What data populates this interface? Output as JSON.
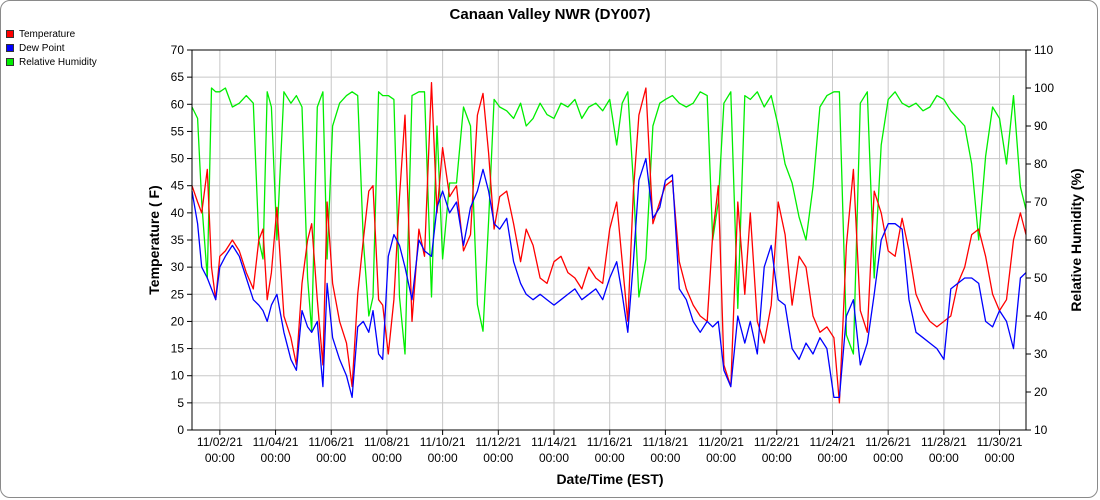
{
  "chart_data": {
    "type": "line",
    "title": "Canaan Valley NWR (DY007)",
    "xlabel": "Date/Time (EST)",
    "ylabel_left": "Temperature ( F)",
    "ylabel_right": "Relative Humidity (%)",
    "ylim_left": [
      0,
      70
    ],
    "ylim_right": [
      10,
      110
    ],
    "yticks_left": [
      0,
      5,
      10,
      15,
      20,
      25,
      30,
      35,
      40,
      45,
      50,
      55,
      60,
      65,
      70
    ],
    "yticks_right": [
      10,
      20,
      30,
      40,
      50,
      60,
      70,
      80,
      90,
      100,
      110
    ],
    "x_unit": "days since 11/01/21 00:00",
    "xlim": [
      1.0,
      30.95
    ],
    "xticks": [
      {
        "x": 2,
        "date": "11/02/21",
        "time": "00:00"
      },
      {
        "x": 4,
        "date": "11/04/21",
        "time": "00:00"
      },
      {
        "x": 6,
        "date": "11/06/21",
        "time": "00:00"
      },
      {
        "x": 8,
        "date": "11/08/21",
        "time": "00:00"
      },
      {
        "x": 10,
        "date": "11/10/21",
        "time": "00:00"
      },
      {
        "x": 12,
        "date": "11/12/21",
        "time": "00:00"
      },
      {
        "x": 14,
        "date": "11/14/21",
        "time": "00:00"
      },
      {
        "x": 16,
        "date": "11/16/21",
        "time": "00:00"
      },
      {
        "x": 18,
        "date": "11/18/21",
        "time": "00:00"
      },
      {
        "x": 20,
        "date": "11/20/21",
        "time": "00:00"
      },
      {
        "x": 22,
        "date": "11/22/21",
        "time": "00:00"
      },
      {
        "x": 24,
        "date": "11/24/21",
        "time": "00:00"
      },
      {
        "x": 26,
        "date": "11/26/21",
        "time": "00:00"
      },
      {
        "x": 28,
        "date": "11/28/21",
        "time": "00:00"
      },
      {
        "x": 30,
        "date": "11/30/21",
        "time": "00:00"
      }
    ],
    "grid": true,
    "legend_position": "top-left outside",
    "series": [
      {
        "name": "Temperature",
        "axis": "left",
        "color": "#ff0000",
        "x": [
          1.0,
          1.2,
          1.35,
          1.55,
          1.7,
          1.85,
          2.0,
          2.2,
          2.45,
          2.7,
          2.95,
          3.2,
          3.4,
          3.55,
          3.7,
          3.85,
          4.05,
          4.3,
          4.55,
          4.75,
          4.95,
          5.15,
          5.3,
          5.5,
          5.7,
          5.85,
          6.05,
          6.3,
          6.55,
          6.75,
          6.95,
          7.15,
          7.35,
          7.5,
          7.7,
          7.85,
          8.05,
          8.25,
          8.45,
          8.65,
          8.9,
          9.15,
          9.35,
          9.6,
          9.8,
          10.0,
          10.25,
          10.5,
          10.75,
          11.0,
          11.25,
          11.45,
          11.65,
          11.85,
          12.05,
          12.3,
          12.55,
          12.8,
          13.0,
          13.25,
          13.5,
          13.75,
          14.0,
          14.25,
          14.5,
          14.75,
          15.0,
          15.25,
          15.5,
          15.75,
          16.0,
          16.25,
          16.45,
          16.65,
          16.85,
          17.05,
          17.3,
          17.55,
          17.8,
          18.0,
          18.25,
          18.5,
          18.75,
          19.0,
          19.25,
          19.5,
          19.7,
          19.9,
          20.1,
          20.35,
          20.6,
          20.85,
          21.05,
          21.3,
          21.55,
          21.8,
          22.05,
          22.3,
          22.55,
          22.8,
          23.05,
          23.3,
          23.55,
          23.8,
          24.05,
          24.25,
          24.5,
          24.75,
          25.0,
          25.25,
          25.5,
          25.75,
          26.0,
          26.25,
          26.5,
          26.75,
          27.0,
          27.25,
          27.5,
          27.75,
          28.0,
          28.25,
          28.5,
          28.75,
          29.0,
          29.25,
          29.5,
          29.75,
          30.0,
          30.25,
          30.5,
          30.75,
          30.95
        ],
        "values": [
          45,
          42,
          40,
          48,
          30,
          24,
          32,
          33,
          35,
          33,
          29,
          26,
          35,
          37,
          24,
          29,
          41,
          21,
          17,
          12,
          27,
          35,
          38,
          24,
          12,
          42,
          27,
          20,
          16,
          8,
          25,
          35,
          44,
          45,
          24,
          23,
          14,
          24,
          43,
          58,
          20,
          37,
          32,
          64,
          40,
          52,
          43,
          45,
          33,
          36,
          58,
          62,
          51,
          37,
          43,
          44,
          38,
          31,
          37,
          34,
          28,
          27,
          31,
          32,
          29,
          28,
          26,
          30,
          28,
          27,
          37,
          42,
          31,
          20,
          44,
          58,
          63,
          38,
          42,
          45,
          46,
          31,
          26,
          23,
          21,
          20,
          36,
          45,
          12,
          8,
          42,
          25,
          40,
          20,
          16,
          23,
          42,
          36,
          23,
          32,
          30,
          21,
          18,
          19,
          17,
          5,
          34,
          48,
          22,
          18,
          44,
          40,
          33,
          32,
          39,
          33,
          25,
          22,
          20,
          19,
          20,
          21,
          27,
          30,
          36,
          37,
          32,
          25,
          22,
          24,
          35,
          40,
          36
        ]
      },
      {
        "name": "Dew Point",
        "axis": "left",
        "color": "#0000ff",
        "x": [
          1.0,
          1.2,
          1.35,
          1.55,
          1.7,
          1.85,
          2.0,
          2.2,
          2.45,
          2.7,
          2.95,
          3.2,
          3.4,
          3.55,
          3.7,
          3.85,
          4.05,
          4.3,
          4.55,
          4.75,
          4.95,
          5.15,
          5.3,
          5.5,
          5.7,
          5.85,
          6.05,
          6.3,
          6.55,
          6.75,
          6.95,
          7.15,
          7.35,
          7.5,
          7.7,
          7.85,
          8.05,
          8.25,
          8.45,
          8.65,
          8.9,
          9.15,
          9.35,
          9.6,
          9.8,
          10.0,
          10.25,
          10.5,
          10.75,
          11.0,
          11.25,
          11.45,
          11.65,
          11.85,
          12.05,
          12.3,
          12.55,
          12.8,
          13.0,
          13.25,
          13.5,
          13.75,
          14.0,
          14.25,
          14.5,
          14.75,
          15.0,
          15.25,
          15.5,
          15.75,
          16.0,
          16.25,
          16.45,
          16.65,
          16.85,
          17.05,
          17.3,
          17.55,
          17.8,
          18.0,
          18.25,
          18.5,
          18.75,
          19.0,
          19.25,
          19.5,
          19.7,
          19.9,
          20.1,
          20.35,
          20.6,
          20.85,
          21.05,
          21.3,
          21.55,
          21.8,
          22.05,
          22.3,
          22.55,
          22.8,
          23.05,
          23.3,
          23.55,
          23.8,
          24.05,
          24.25,
          24.5,
          24.75,
          25.0,
          25.25,
          25.5,
          25.75,
          26.0,
          26.25,
          26.5,
          26.75,
          27.0,
          27.25,
          27.5,
          27.75,
          28.0,
          28.25,
          28.5,
          28.75,
          29.0,
          29.25,
          29.5,
          29.75,
          30.0,
          30.25,
          30.5,
          30.75,
          30.95
        ],
        "values": [
          44,
          38,
          30,
          28,
          26,
          24,
          30,
          32,
          34,
          32,
          28,
          24,
          23,
          22,
          20,
          23,
          25,
          18,
          13,
          11,
          22,
          19,
          18,
          20,
          8,
          27,
          17,
          13,
          10,
          6,
          19,
          20,
          18,
          22,
          14,
          13,
          32,
          36,
          34,
          30,
          24,
          35,
          33,
          32,
          41,
          44,
          40,
          42,
          34,
          41,
          44,
          48,
          44,
          38,
          37,
          39,
          31,
          27,
          25,
          24,
          25,
          24,
          23,
          24,
          25,
          26,
          24,
          25,
          26,
          24,
          28,
          31,
          25,
          18,
          31,
          46,
          50,
          39,
          41,
          46,
          47,
          26,
          24,
          20,
          18,
          20,
          19,
          20,
          11,
          8,
          21,
          16,
          20,
          14,
          30,
          34,
          24,
          23,
          15,
          13,
          16,
          14,
          17,
          15,
          6,
          6,
          21,
          24,
          12,
          16,
          25,
          35,
          38,
          38,
          37,
          24,
          18,
          17,
          16,
          15,
          13,
          26,
          27,
          28,
          28,
          27,
          20,
          19,
          22,
          20,
          15,
          28,
          29
        ]
      },
      {
        "name": "Relative Humidity",
        "axis": "right",
        "color": "#00ee00",
        "x": [
          1.0,
          1.2,
          1.35,
          1.55,
          1.7,
          1.85,
          2.0,
          2.2,
          2.45,
          2.7,
          2.95,
          3.2,
          3.4,
          3.55,
          3.7,
          3.85,
          4.05,
          4.3,
          4.55,
          4.75,
          4.95,
          5.15,
          5.3,
          5.5,
          5.7,
          5.85,
          6.05,
          6.3,
          6.55,
          6.75,
          6.95,
          7.15,
          7.35,
          7.5,
          7.7,
          7.85,
          8.05,
          8.25,
          8.45,
          8.65,
          8.9,
          9.15,
          9.35,
          9.6,
          9.8,
          10.0,
          10.25,
          10.5,
          10.75,
          11.0,
          11.25,
          11.45,
          11.65,
          11.85,
          12.05,
          12.3,
          12.55,
          12.8,
          13.0,
          13.25,
          13.5,
          13.75,
          14.0,
          14.25,
          14.5,
          14.75,
          15.0,
          15.25,
          15.5,
          15.75,
          16.0,
          16.25,
          16.45,
          16.65,
          16.85,
          17.05,
          17.3,
          17.55,
          17.8,
          18.0,
          18.25,
          18.5,
          18.75,
          19.0,
          19.25,
          19.5,
          19.7,
          19.9,
          20.1,
          20.35,
          20.6,
          20.85,
          21.05,
          21.3,
          21.55,
          21.8,
          22.05,
          22.3,
          22.55,
          22.8,
          23.05,
          23.3,
          23.55,
          23.8,
          24.05,
          24.25,
          24.5,
          24.75,
          25.0,
          25.25,
          25.5,
          25.75,
          26.0,
          26.25,
          26.5,
          26.75,
          27.0,
          27.25,
          27.5,
          27.75,
          28.0,
          28.25,
          28.5,
          28.75,
          29.0,
          29.25,
          29.5,
          29.75,
          30.0,
          30.25,
          30.5,
          30.75,
          30.95
        ],
        "values": [
          95,
          92,
          70,
          50,
          100,
          99,
          99,
          100,
          95,
          96,
          98,
          96,
          60,
          55,
          99,
          95,
          60,
          99,
          96,
          98,
          95,
          50,
          36,
          95,
          99,
          55,
          90,
          96,
          98,
          99,
          98,
          60,
          40,
          45,
          99,
          98,
          98,
          97,
          45,
          30,
          98,
          99,
          99,
          45,
          90,
          55,
          75,
          75,
          95,
          90,
          43,
          36,
          65,
          97,
          95,
          94,
          92,
          96,
          90,
          92,
          96,
          93,
          92,
          96,
          95,
          97,
          92,
          95,
          96,
          94,
          97,
          85,
          96,
          99,
          75,
          45,
          55,
          90,
          96,
          97,
          98,
          96,
          95,
          96,
          99,
          98,
          60,
          70,
          96,
          99,
          42,
          98,
          97,
          99,
          95,
          98,
          90,
          80,
          75,
          66,
          60,
          74,
          95,
          98,
          99,
          99,
          35,
          30,
          96,
          99,
          50,
          85,
          97,
          99,
          96,
          95,
          96,
          94,
          95,
          98,
          97,
          94,
          92,
          90,
          80,
          60,
          82,
          95,
          92,
          80,
          98,
          74,
          68
        ]
      }
    ]
  }
}
